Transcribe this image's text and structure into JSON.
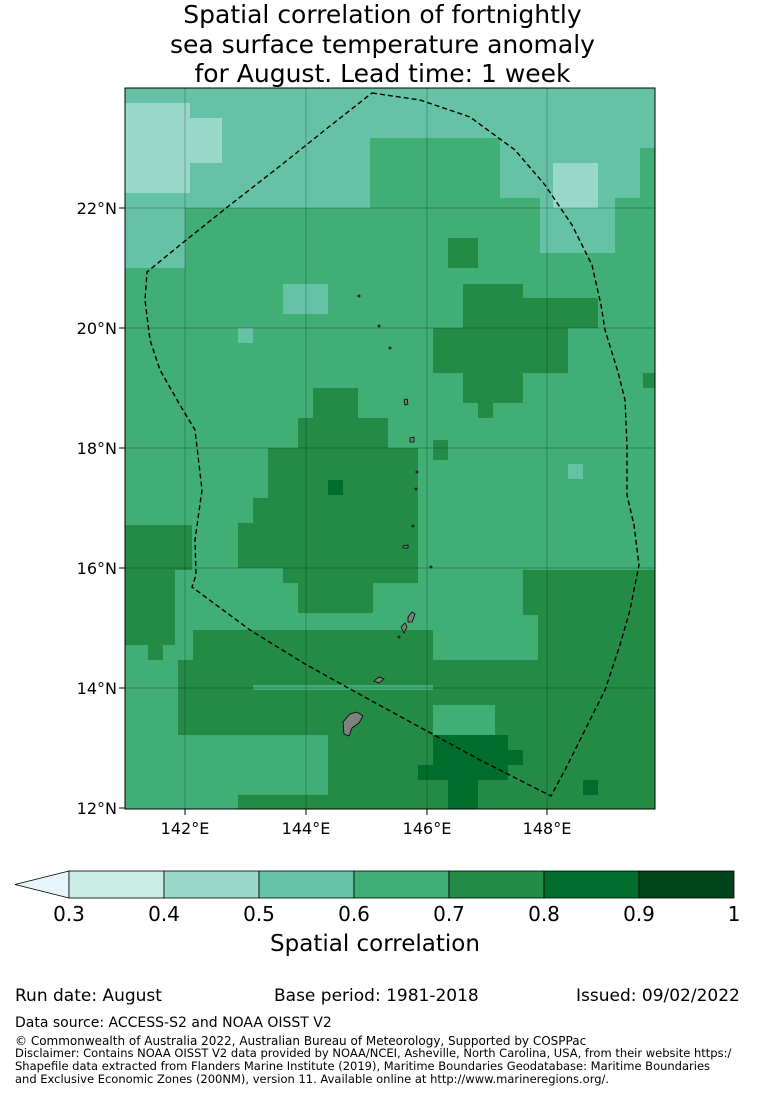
{
  "title_lines": [
    "Spatial correlation of fortnightly",
    "sea surface temperature anomaly",
    "for August. Lead time: 1 week"
  ],
  "map": {
    "lon_ticks": [
      "142°E",
      "144°E",
      "146°E",
      "148°E"
    ],
    "lat_ticks": [
      "22°N",
      "20°N",
      "18°N",
      "16°N",
      "14°N",
      "12°N"
    ],
    "lon_range": [
      141.0,
      149.8
    ],
    "lat_range": [
      12.0,
      24.0
    ]
  },
  "colorbar": {
    "tick_labels": [
      "0.3",
      "0.4",
      "0.5",
      "0.6",
      "0.7",
      "0.8",
      "0.9",
      "1"
    ],
    "colors": [
      "#e5f5f9",
      "#ccece6",
      "#99d8c9",
      "#66c2a4",
      "#41ae76",
      "#238b45",
      "#006d2c",
      "#00441b"
    ],
    "label": "Spatial correlation"
  },
  "footer": {
    "run_date": "Run date: August",
    "base_period": "Base period: 1981-2018",
    "issued": "Issued: 09/02/2022",
    "data_source": "Data source: ACCESS-S2 and NOAA OISST V2",
    "copyright": "© Commonwealth of Australia 2022, Australian Bureau of Meteorology, Supported by COSPPac",
    "disclaimer_1": "Disclaimer: Contains NOAA OISST V2 data provided by NOAA/NCEI, Asheville, North Carolina, USA, from their website https:/",
    "disclaimer_2": "Shapefile data extracted from Flanders Marine Institute (2019), Maritime Boundaries Geodatabase: Maritime Boundaries",
    "disclaimer_3": "and Exclusive Economic Zones (200NM), version 11. Available online at http://www.marineregions.org/."
  }
}
